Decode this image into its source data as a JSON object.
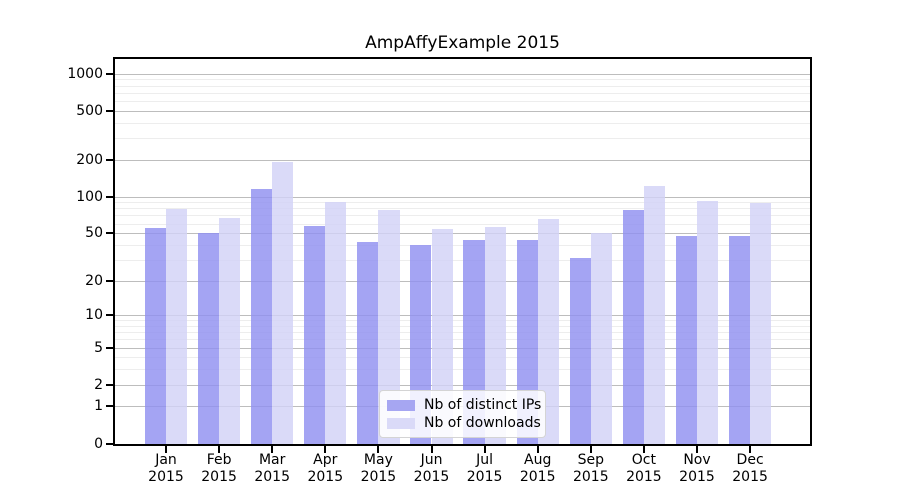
{
  "title": "AmpAffyExample 2015",
  "chart_data": {
    "type": "bar",
    "title": "AmpAffyExample 2015",
    "categories": [
      "Jan",
      "Feb",
      "Mar",
      "Apr",
      "May",
      "Jun",
      "Jul",
      "Aug",
      "Sep",
      "Oct",
      "Nov",
      "Dec"
    ],
    "x_year_label": "2015",
    "series": [
      {
        "name": "Nb of distinct IPs",
        "color": "#a6a6f2",
        "fill": "rgba(144,144,240,0.82)",
        "values": [
          55,
          50,
          115,
          57,
          42,
          40,
          44,
          44,
          31,
          78,
          47,
          47
        ]
      },
      {
        "name": "Nb of downloads",
        "color": "#dadaf8",
        "fill": "rgba(210,210,246,0.82)",
        "values": [
          79,
          67,
          190,
          91,
          77,
          54,
          56,
          65,
          50,
          122,
          92,
          88
        ]
      }
    ],
    "y_ticks": [
      0,
      1,
      2,
      5,
      10,
      20,
      50,
      100,
      200,
      500,
      1000
    ],
    "y_minor_ticks": [
      3,
      4,
      6,
      7,
      8,
      9,
      30,
      40,
      60,
      70,
      80,
      90,
      300,
      400,
      600,
      700,
      800,
      900
    ],
    "y_scale": "log1p",
    "ylim": [
      0,
      1000
    ],
    "xlabel": "",
    "ylabel": "",
    "grid": true,
    "legend_position": "bottom-center",
    "legend_labels": [
      "Nb of distinct IPs",
      "Nb of downloads"
    ]
  },
  "colors": {
    "background": "#ffffff",
    "spine": "#000000",
    "major_grid": "#bdbdbd",
    "minor_grid": "#ededed",
    "bar_distinct_ips": "#a6a6f2",
    "bar_downloads": "#dadaf8"
  }
}
